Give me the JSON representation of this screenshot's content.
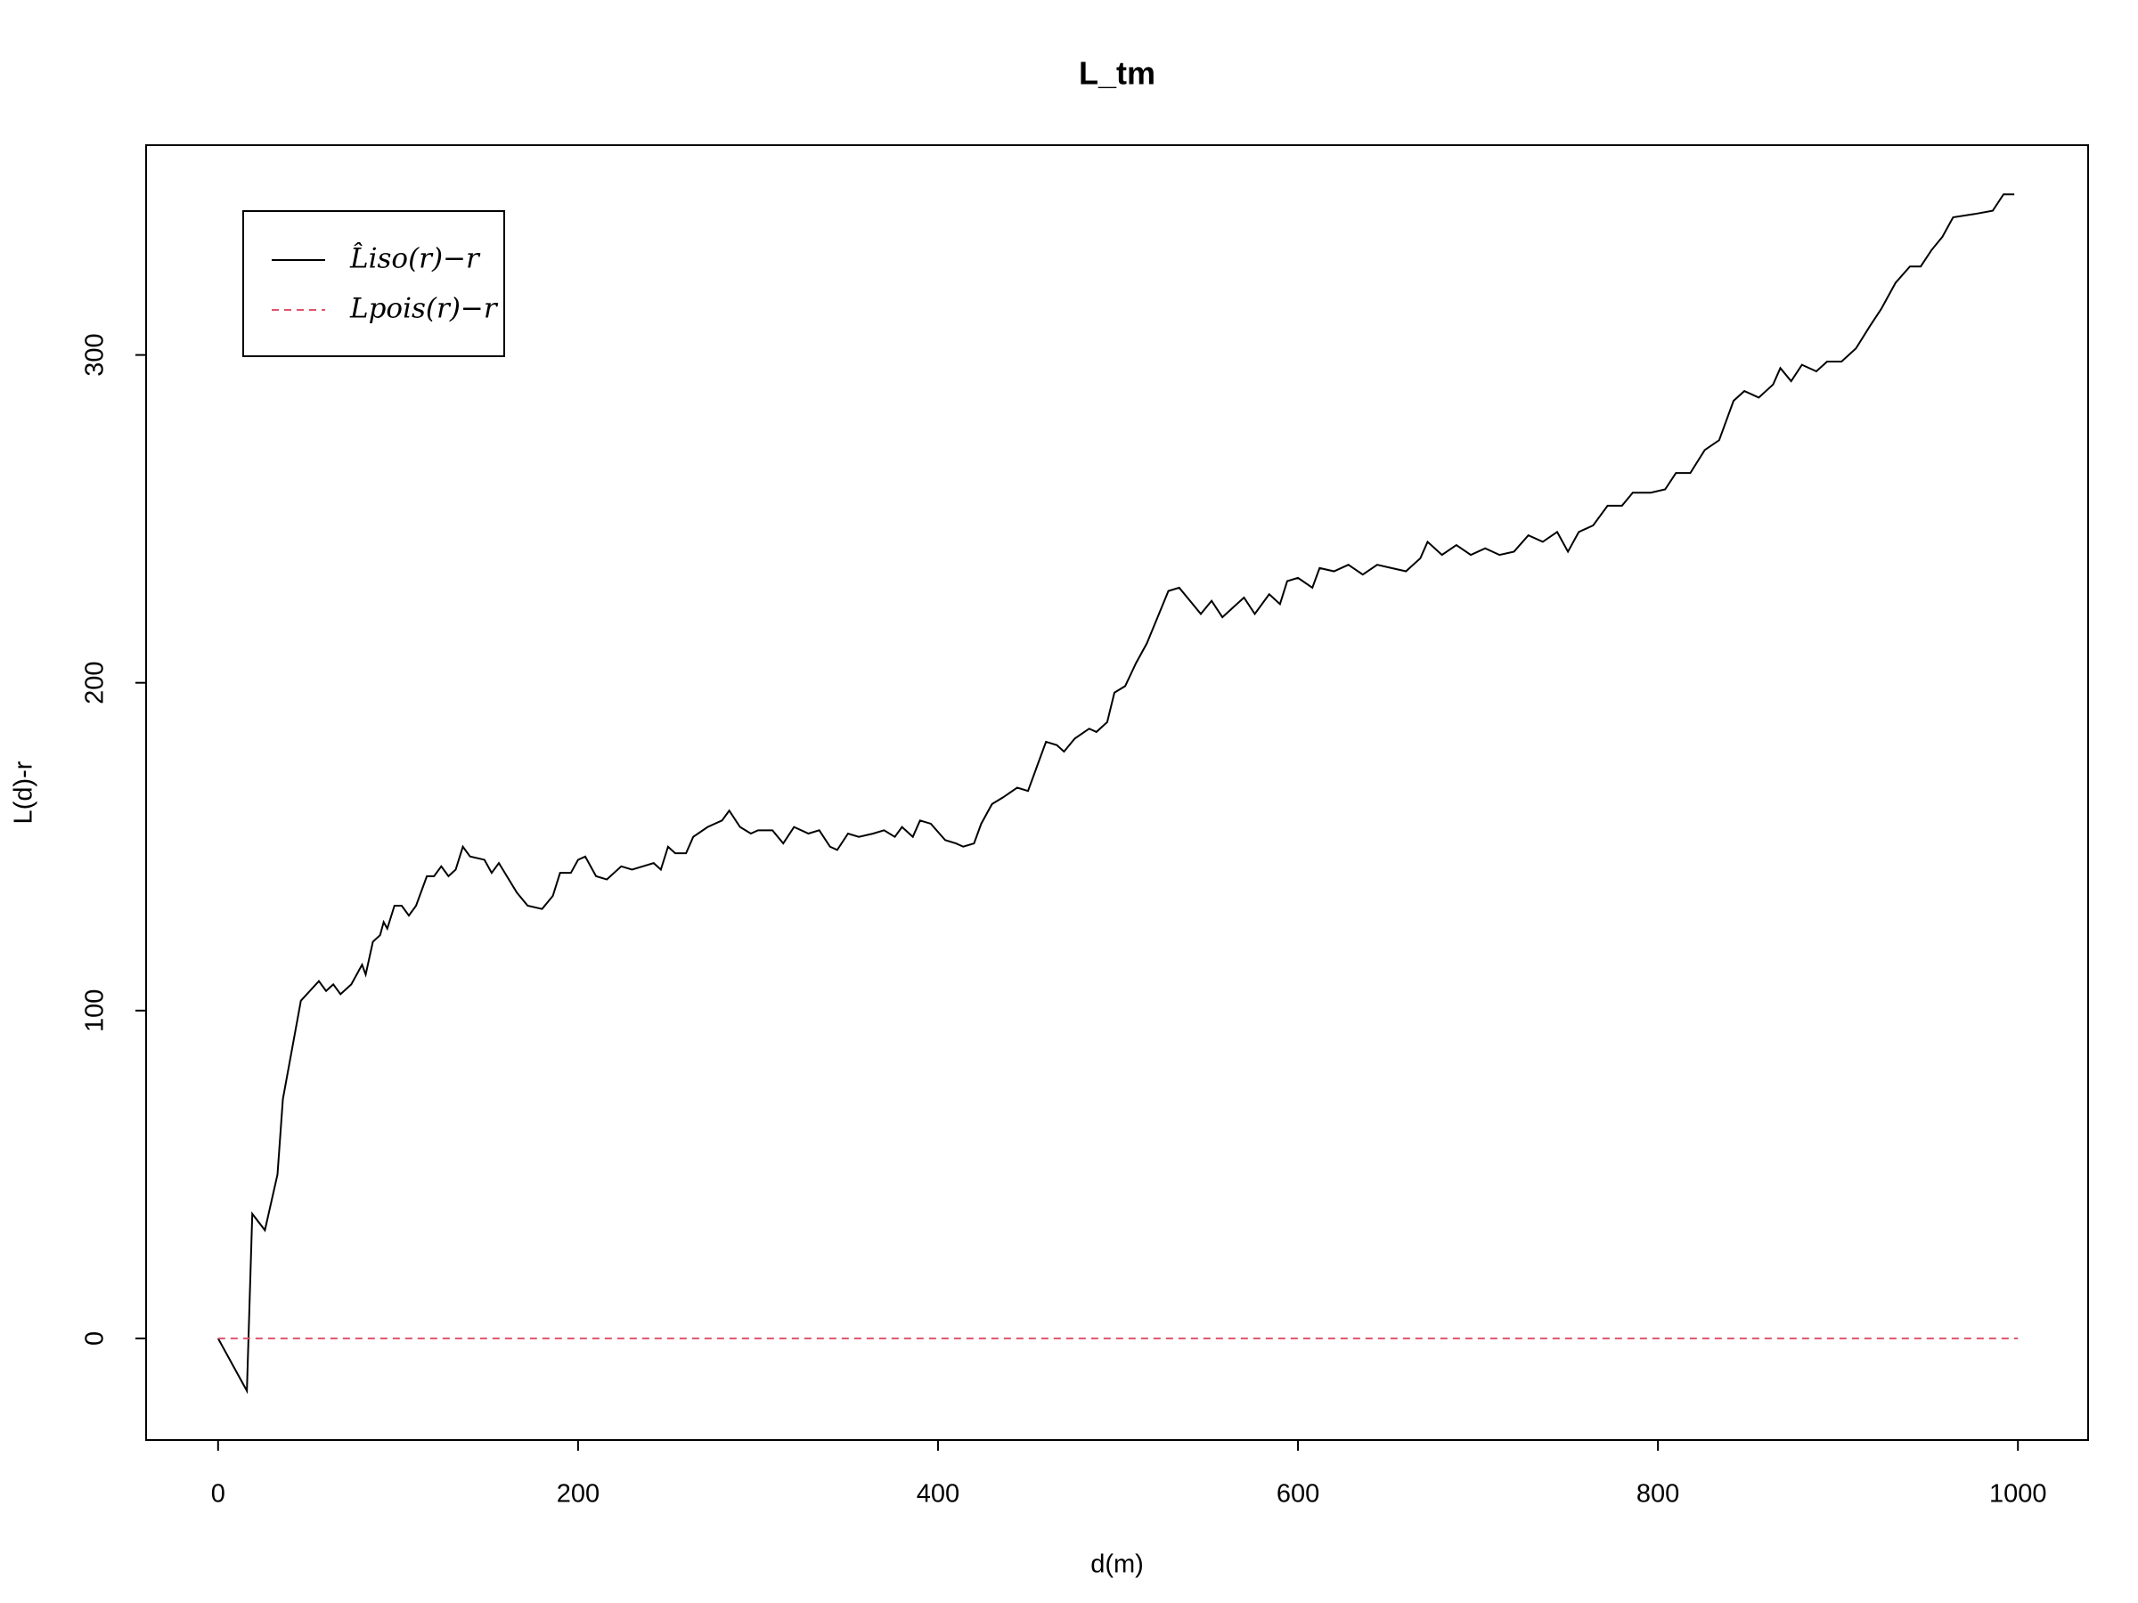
{
  "chart_data": {
    "type": "line",
    "title": "L_tm",
    "x_label": "d(m)",
    "y_label": "L(d)-r",
    "xlim": [
      -40,
      1039
    ],
    "ylim": [
      -31,
      364
    ],
    "xticks": [
      0,
      200,
      400,
      600,
      800,
      1000
    ],
    "yticks": [
      0,
      100,
      200,
      300
    ],
    "legend_position": "top-left",
    "series": [
      {
        "name": "L̂iso(r)−r",
        "color": "#000000",
        "dash": false,
        "x": [
          0,
          16,
          19,
          26,
          33,
          36,
          46,
          56,
          60,
          64,
          68,
          74,
          80,
          82,
          86,
          90,
          92,
          94,
          98,
          102,
          106,
          110,
          116,
          120,
          124,
          128,
          132,
          136,
          140,
          148,
          152,
          156,
          166,
          172,
          180,
          186,
          190,
          196,
          200,
          204,
          210,
          216,
          224,
          230,
          236,
          242,
          246,
          250,
          254,
          260,
          264,
          272,
          280,
          284,
          290,
          296,
          300,
          308,
          314,
          320,
          328,
          334,
          340,
          344,
          350,
          356,
          364,
          370,
          376,
          380,
          386,
          390,
          396,
          404,
          410,
          414,
          420,
          424,
          430,
          436,
          444,
          450,
          456,
          460,
          466,
          470,
          476,
          484,
          488,
          494,
          498,
          504,
          510,
          516,
          522,
          528,
          534,
          540,
          546,
          552,
          558,
          564,
          570,
          576,
          584,
          590,
          594,
          600,
          608,
          612,
          620,
          628,
          636,
          644,
          652,
          660,
          668,
          672,
          680,
          688,
          696,
          704,
          712,
          720,
          728,
          736,
          744,
          750,
          756,
          764,
          772,
          780,
          786,
          796,
          804,
          810,
          818,
          826,
          834,
          842,
          848,
          856,
          864,
          868,
          874,
          880,
          888,
          894,
          902,
          910,
          918,
          924,
          932,
          940,
          946,
          952,
          958,
          964,
          976,
          986,
          992,
          998
        ],
        "values": [
          0,
          -16,
          38,
          33,
          50,
          73,
          103,
          109,
          106,
          108,
          105,
          108,
          114,
          111,
          121,
          123,
          127,
          125,
          132,
          132,
          129,
          132,
          141,
          141,
          144,
          141,
          143,
          150,
          147,
          146,
          142,
          145,
          136,
          132,
          131,
          135,
          142,
          142,
          146,
          147,
          141,
          140,
          144,
          143,
          144,
          145,
          143,
          150,
          148,
          148,
          153,
          156,
          158,
          161,
          156,
          154,
          155,
          155,
          151,
          156,
          154,
          155,
          150,
          149,
          154,
          153,
          154,
          155,
          153,
          156,
          153,
          158,
          157,
          152,
          151,
          150,
          151,
          157,
          163,
          165,
          168,
          167,
          176,
          182,
          181,
          179,
          183,
          186,
          185,
          188,
          197,
          199,
          206,
          212,
          220,
          228,
          229,
          225,
          221,
          225,
          220,
          223,
          226,
          221,
          227,
          224,
          231,
          232,
          229,
          235,
          234,
          236,
          233,
          236,
          235,
          234,
          238,
          243,
          239,
          242,
          239,
          241,
          239,
          240,
          245,
          243,
          246,
          240,
          246,
          248,
          254,
          254,
          258,
          258,
          259,
          264,
          264,
          271,
          274,
          286,
          289,
          287,
          291,
          296,
          292,
          297,
          295,
          298,
          298,
          302,
          309,
          314,
          322,
          327,
          327,
          332,
          336,
          342,
          343,
          344,
          349,
          349
        ]
      },
      {
        "name": "Lpois(r)−r",
        "color": "#DF536B",
        "dash": true,
        "x": [
          0,
          1000
        ],
        "values": [
          0,
          0
        ]
      }
    ]
  }
}
